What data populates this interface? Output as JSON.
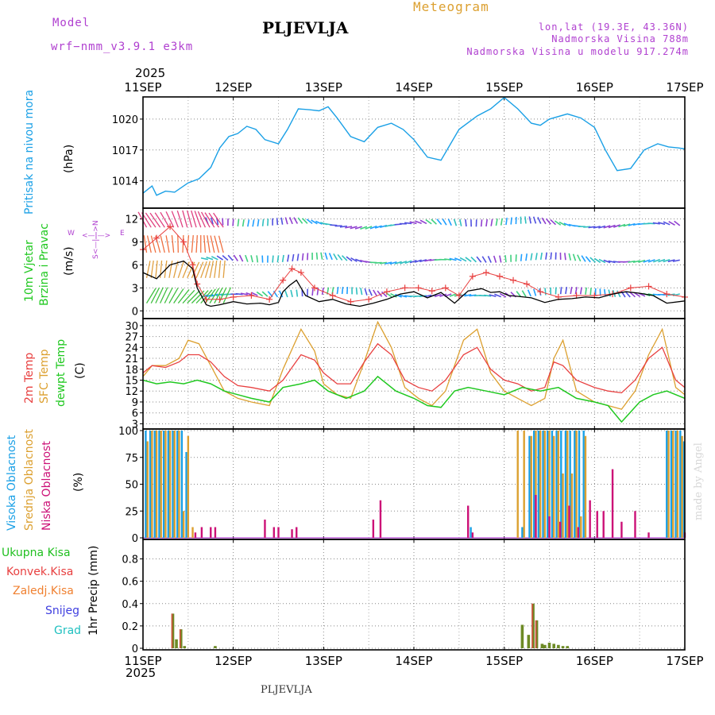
{
  "header": {
    "model_label": "Model",
    "model_name": "wrf−nmm_v3.9.1  e3km",
    "station": "PLJEVLJA",
    "chart_title": "Meteogram",
    "lonlat": "lon,lat (19.3E, 43.36N)",
    "elevation": "Nadmorska Visina 788m",
    "model_elevation": "Nadmorska Visina u modelu 917.274m",
    "year_top": "2025",
    "year_bottom": "2025",
    "footer_station": "PLJEVLJA",
    "watermark": "made by Angel"
  },
  "colors": {
    "pressure": "#1aa0e6",
    "temp2m": "#e84040",
    "sfc_temp": "#dca030",
    "dewpoint": "#20c820",
    "high_cloud": "#1aa0e6",
    "mid_cloud": "#dca030",
    "low_cloud": "#cc1177",
    "total_precip": "#20c020",
    "conv_precip": "#e84040",
    "frozen_precip": "#f08030",
    "snow": "#4040e0",
    "hail": "#20c0c0",
    "wind_speed": "#000000",
    "gust": "#e84040",
    "model_label": "#b040d0"
  },
  "chart_data": [
    {
      "id": "pressure",
      "type": "line",
      "title": "Pritisak na nivou mora",
      "ylabel": "(hPa)",
      "x_unit": "days since 11SEP 00Z",
      "xlim": [
        0,
        6
      ],
      "ylim": [
        1011.5,
        1022
      ],
      "yticks": [
        1014,
        1017,
        1020
      ],
      "x_tick_labels": [
        "11SEP",
        "12SEP",
        "13SEP",
        "14SEP",
        "15SEP",
        "16SEP",
        "17SEP"
      ],
      "series": [
        {
          "name": "MSL pressure",
          "x": [
            0,
            0.1,
            0.15,
            0.25,
            0.35,
            0.5,
            0.62,
            0.75,
            0.85,
            0.95,
            1.05,
            1.15,
            1.25,
            1.35,
            1.5,
            1.6,
            1.72,
            1.85,
            1.95,
            2.05,
            2.15,
            2.3,
            2.45,
            2.6,
            2.75,
            2.88,
            3.0,
            3.15,
            3.3,
            3.5,
            3.7,
            3.85,
            4.0,
            4.15,
            4.3,
            4.4,
            4.5,
            4.7,
            4.85,
            5.0,
            5.12,
            5.25,
            5.4,
            5.55,
            5.7,
            5.82,
            5.93,
            6.0
          ],
          "values": [
            1012.8,
            1013.5,
            1012.6,
            1013.0,
            1012.9,
            1013.8,
            1014.2,
            1015.3,
            1017.2,
            1018.3,
            1018.6,
            1019.3,
            1019.0,
            1018.0,
            1017.6,
            1019.0,
            1021.0,
            1020.9,
            1020.8,
            1021.2,
            1020.1,
            1018.3,
            1017.8,
            1019.2,
            1019.6,
            1019.0,
            1018.0,
            1016.3,
            1016.0,
            1019.0,
            1020.3,
            1021.0,
            1022.1,
            1021.0,
            1019.6,
            1019.4,
            1020.0,
            1020.5,
            1020.1,
            1019.2,
            1017.0,
            1015.0,
            1015.2,
            1017.0,
            1017.6,
            1017.3,
            1017.2,
            1017.1
          ]
        }
      ]
    },
    {
      "id": "wind",
      "type": "line",
      "title": "10m Vjetar Brzina i Pravac",
      "ylabel": "(m/s)",
      "compass": "N\n<—|—>\nS",
      "compass_w": "W",
      "compass_e": "E",
      "compass_sn": "S<—|—>N",
      "ylim": [
        -0.8,
        13.2
      ],
      "yticks": [
        0,
        3,
        6,
        9,
        12
      ],
      "barb_rows_ms": [
        2,
        6.5,
        11.2
      ],
      "series": [
        {
          "name": "speed",
          "x": [
            0,
            0.15,
            0.3,
            0.45,
            0.55,
            0.6,
            0.7,
            0.75,
            0.85,
            1.0,
            1.15,
            1.3,
            1.4,
            1.5,
            1.55,
            1.62,
            1.7,
            1.8,
            1.95,
            2.1,
            2.25,
            2.4,
            2.55,
            2.7,
            2.85,
            3.0,
            3.15,
            3.3,
            3.45,
            3.6,
            3.75,
            3.85,
            3.95,
            4.05,
            4.15,
            4.3,
            4.45,
            4.6,
            4.75,
            4.9,
            5.05,
            5.2,
            5.35,
            5.5,
            5.65,
            5.8,
            6.0
          ],
          "values": [
            5.0,
            4.2,
            6.0,
            6.5,
            5.5,
            3.0,
            0.8,
            0.6,
            0.8,
            1.2,
            0.9,
            1.0,
            0.8,
            1.1,
            2.5,
            3.3,
            4.0,
            2.0,
            1.2,
            1.5,
            0.9,
            0.6,
            1.0,
            1.5,
            2.2,
            2.5,
            1.7,
            2.4,
            1.0,
            2.6,
            2.9,
            2.4,
            2.5,
            2.0,
            1.9,
            1.7,
            1.1,
            1.5,
            1.6,
            1.8,
            1.7,
            2.2,
            2.5,
            2.3,
            2.0,
            1.0,
            1.3
          ]
        },
        {
          "name": "gust",
          "x": [
            0,
            0.15,
            0.3,
            0.45,
            0.55,
            0.6,
            0.7,
            0.85,
            1.0,
            1.2,
            1.4,
            1.55,
            1.65,
            1.75,
            1.9,
            2.1,
            2.3,
            2.5,
            2.7,
            2.9,
            3.05,
            3.2,
            3.35,
            3.5,
            3.65,
            3.8,
            3.95,
            4.1,
            4.25,
            4.4,
            4.6,
            4.8,
            5.0,
            5.2,
            5.4,
            5.6,
            5.8,
            6.0
          ],
          "values": [
            8.0,
            9.5,
            11.0,
            9.0,
            6.0,
            3.5,
            1.5,
            1.5,
            1.8,
            2.0,
            1.5,
            4.0,
            5.5,
            5.0,
            3.0,
            2.0,
            1.2,
            1.5,
            2.5,
            3.0,
            3.0,
            2.6,
            3.0,
            2.0,
            4.5,
            5.0,
            4.5,
            4.0,
            3.5,
            2.5,
            1.8,
            2.0,
            2.0,
            2.2,
            3.0,
            3.2,
            2.2,
            1.8
          ]
        }
      ]
    },
    {
      "id": "temperature",
      "type": "line",
      "title": "2m Temp",
      "title2": "SFC Temp",
      "title3": "dewpt Temp",
      "ylabel": "(C)",
      "ylim": [
        2,
        31.5
      ],
      "yticks": [
        3,
        6,
        9,
        12,
        15,
        18,
        21,
        24,
        27,
        30
      ],
      "series": [
        {
          "name": "2m Temp",
          "x": [
            0,
            0.1,
            0.25,
            0.4,
            0.5,
            0.62,
            0.75,
            0.9,
            1.05,
            1.2,
            1.4,
            1.55,
            1.75,
            1.9,
            2.0,
            2.15,
            2.3,
            2.45,
            2.6,
            2.75,
            2.9,
            3.05,
            3.2,
            3.35,
            3.55,
            3.7,
            3.85,
            4.0,
            4.15,
            4.3,
            4.45,
            4.55,
            4.65,
            4.8,
            5.0,
            5.15,
            5.3,
            5.45,
            5.6,
            5.75,
            5.9,
            6.0
          ],
          "values": [
            17,
            19,
            18.5,
            20,
            22,
            22,
            20,
            16,
            13.5,
            13,
            12,
            15,
            22,
            20.5,
            17,
            14,
            14,
            20,
            25,
            22,
            15,
            13,
            12,
            15,
            22,
            24,
            18,
            15,
            14,
            12,
            13,
            20,
            19,
            15,
            13,
            12,
            11.5,
            15,
            21,
            24,
            15,
            13
          ]
        },
        {
          "name": "SFC Temp",
          "x": [
            0,
            0.1,
            0.25,
            0.4,
            0.5,
            0.62,
            0.75,
            0.9,
            1.05,
            1.2,
            1.4,
            1.55,
            1.75,
            1.9,
            2.0,
            2.15,
            2.3,
            2.45,
            2.6,
            2.75,
            2.9,
            3.05,
            3.2,
            3.35,
            3.55,
            3.7,
            3.85,
            4.0,
            4.15,
            4.3,
            4.45,
            4.55,
            4.65,
            4.8,
            5.0,
            5.15,
            5.3,
            5.45,
            5.6,
            5.75,
            5.9,
            6.0
          ],
          "values": [
            16,
            19,
            19,
            21,
            26,
            25,
            19,
            12,
            10,
            9,
            8,
            18,
            29,
            23,
            14,
            11,
            10,
            20,
            31,
            24,
            13,
            10,
            8,
            12,
            26,
            29,
            17,
            12,
            10,
            8,
            10,
            21,
            26,
            12,
            9,
            8,
            7,
            12,
            22,
            29,
            13,
            11
          ]
        },
        {
          "name": "dewpt Temp",
          "x": [
            0,
            0.15,
            0.3,
            0.45,
            0.6,
            0.75,
            0.9,
            1.05,
            1.2,
            1.4,
            1.55,
            1.75,
            1.9,
            2.05,
            2.25,
            2.45,
            2.6,
            2.8,
            3.0,
            3.15,
            3.3,
            3.45,
            3.6,
            3.8,
            4.0,
            4.2,
            4.4,
            4.6,
            4.8,
            5.0,
            5.15,
            5.3,
            5.5,
            5.65,
            5.8,
            6.0
          ],
          "values": [
            15,
            14,
            14.5,
            14,
            15,
            14,
            12,
            11,
            10,
            9,
            13,
            14,
            15,
            12,
            10,
            12,
            16,
            12,
            10,
            8,
            7.5,
            12,
            13,
            12,
            11,
            13,
            12,
            13,
            10,
            9,
            8,
            3.5,
            9,
            11,
            12,
            10
          ]
        }
      ]
    },
    {
      "id": "cloud",
      "type": "bar",
      "title": "Visoka Oblacnost",
      "title2": "Srednja Oblacnost",
      "title3": "Niska Oblacnost",
      "ylabel": "(%)",
      "ylim": [
        0,
        100
      ],
      "yticks": [
        0,
        25,
        50,
        75,
        100
      ],
      "series": [
        {
          "name": "high",
          "x": [
            0.03,
            0.08,
            0.13,
            0.18,
            0.23,
            0.28,
            0.33,
            0.38,
            0.43,
            0.48,
            3.63,
            4.2,
            4.28,
            4.33,
            4.38,
            4.43,
            4.48,
            4.53,
            4.58,
            4.63,
            4.68,
            4.73,
            4.78,
            4.83,
            4.88,
            5.8,
            5.85,
            5.9,
            5.95,
            5.99
          ],
          "values": [
            100,
            100,
            100,
            100,
            100,
            100,
            100,
            100,
            100,
            80,
            10,
            10,
            95,
            100,
            100,
            100,
            100,
            100,
            100,
            100,
            100,
            100,
            100,
            100,
            100,
            100,
            100,
            100,
            100,
            90
          ]
        },
        {
          "name": "mid",
          "x": [
            0.05,
            0.1,
            0.15,
            0.2,
            0.25,
            0.3,
            0.35,
            0.4,
            0.45,
            0.5,
            0.55,
            4.15,
            4.22,
            4.3,
            4.35,
            4.4,
            4.45,
            4.5,
            4.55,
            4.6,
            4.65,
            4.7,
            4.75,
            4.8,
            4.85,
            4.9,
            5.82,
            5.87,
            5.92,
            5.97
          ],
          "values": [
            90,
            100,
            100,
            100,
            100,
            100,
            100,
            100,
            25,
            95,
            10,
            100,
            100,
            95,
            100,
            100,
            100,
            100,
            95,
            100,
            60,
            100,
            60,
            100,
            20,
            95,
            100,
            100,
            100,
            95
          ]
        },
        {
          "name": "low",
          "x": [
            0.58,
            0.65,
            0.75,
            0.8,
            1.35,
            1.45,
            1.5,
            1.65,
            1.7,
            2.55,
            2.63,
            3.6,
            3.65,
            4.35,
            4.5,
            4.62,
            4.72,
            4.82,
            4.95,
            5.03,
            5.1,
            5.2,
            5.3,
            5.45,
            5.6,
            6.0
          ],
          "values": [
            5,
            10,
            10,
            10,
            17,
            10,
            10,
            8,
            10,
            17,
            35,
            30,
            5,
            40,
            20,
            15,
            30,
            10,
            35,
            25,
            25,
            64,
            15,
            25,
            5,
            5
          ]
        }
      ]
    },
    {
      "id": "precip",
      "type": "bar",
      "title": "Ukupna Kisa",
      "title2": "Konvek.Kisa",
      "title3": "Zaledj.Kisa",
      "title4": "Snijeg",
      "title5": "Grad",
      "ylabel": "1hr Precip (mm)",
      "ylim": [
        0,
        0.96
      ],
      "yticks": [
        0,
        0.2,
        0.4,
        0.6,
        0.8
      ],
      "series": [
        {
          "name": "total",
          "x": [
            0.33,
            0.37,
            0.42,
            0.46,
            0.8,
            4.2,
            4.27,
            4.32,
            4.36,
            4.42,
            4.45,
            4.5,
            4.55,
            4.6,
            4.65,
            4.7
          ],
          "values": [
            0.31,
            0.08,
            0.17,
            0.02,
            0.02,
            0.21,
            0.12,
            0.4,
            0.25,
            0.04,
            0.03,
            0.05,
            0.04,
            0.03,
            0.02,
            0.02
          ]
        },
        {
          "name": "convective",
          "x": [
            0.33,
            0.42,
            4.32,
            4.36
          ],
          "values": [
            0.31,
            0.17,
            0.4,
            0.25
          ]
        }
      ]
    }
  ]
}
